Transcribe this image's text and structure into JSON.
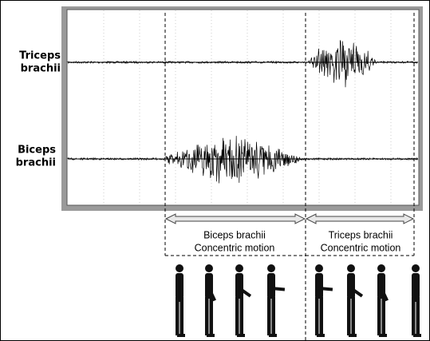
{
  "emg_labels": [
    {
      "lines": [
        "Triceps",
        "brachii"
      ]
    },
    {
      "lines": [
        "Biceps",
        "brachii"
      ]
    }
  ],
  "phases": [
    {
      "lines": [
        "Biceps brachii",
        "Concentric motion"
      ]
    },
    {
      "lines": [
        "Triceps brachii",
        "Concentric motion"
      ]
    }
  ]
}
